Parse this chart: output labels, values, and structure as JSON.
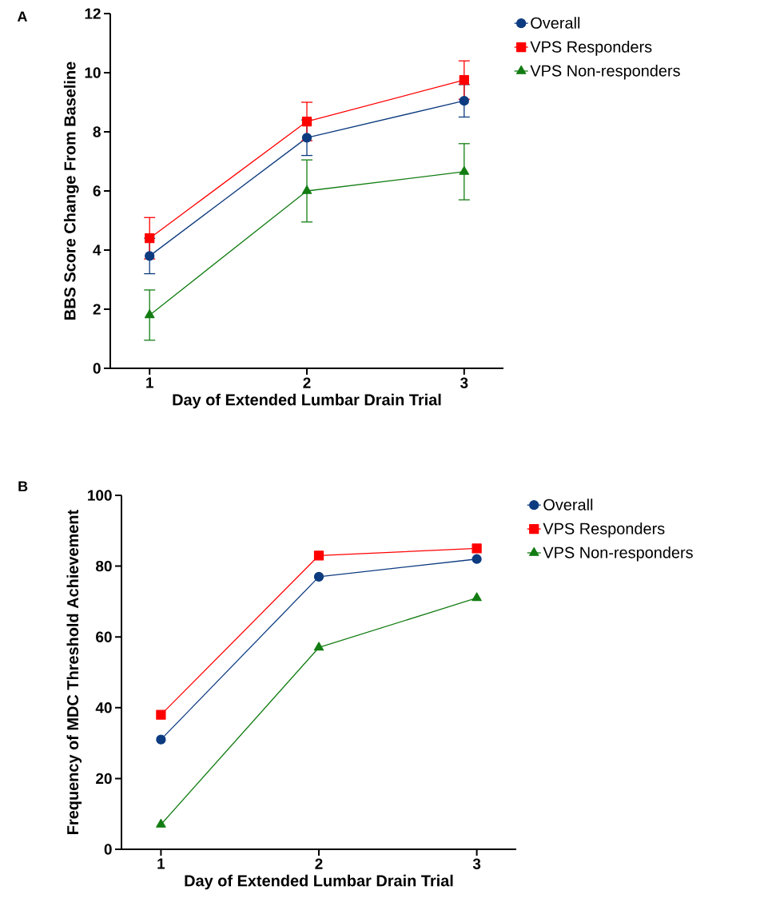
{
  "chart_data": [
    {
      "type": "line",
      "title": "A",
      "xlabel": "Day of Extended Lumbar Drain Trial",
      "ylabel": "BBS Score Change From Baseline",
      "x": [
        1,
        2,
        3
      ],
      "xlim": [
        0.75,
        3.25
      ],
      "xticks": [
        1,
        2,
        3
      ],
      "ylim": [
        0,
        12
      ],
      "yticks": [
        0,
        2,
        4,
        6,
        8,
        10,
        12
      ],
      "legend": "right",
      "series": [
        {
          "name": "Overall",
          "color": "#0d3b80",
          "marker": "circle",
          "values": [
            3.8,
            7.8,
            9.05
          ],
          "errors": [
            0.6,
            0.6,
            0.55
          ]
        },
        {
          "name": "VPS Responders",
          "color": "#ff0000",
          "marker": "square",
          "values": [
            4.4,
            8.35,
            9.75
          ],
          "errors": [
            0.7,
            0.65,
            0.65
          ]
        },
        {
          "name": "VPS Non-responders",
          "color": "#137d13",
          "marker": "triangle",
          "values": [
            1.8,
            6.0,
            6.65
          ],
          "errors": [
            0.85,
            1.05,
            0.95
          ]
        }
      ]
    },
    {
      "type": "line",
      "title": "B",
      "xlabel": "Day of Extended Lumbar Drain Trial",
      "ylabel": "Frequency of MDC Threshold Achievement",
      "x": [
        1,
        2,
        3
      ],
      "xlim": [
        0.75,
        3.25
      ],
      "xticks": [
        1,
        2,
        3
      ],
      "ylim": [
        0,
        100
      ],
      "yticks": [
        0,
        20,
        40,
        60,
        80,
        100
      ],
      "legend": "right",
      "series": [
        {
          "name": "Overall",
          "color": "#0d3b80",
          "marker": "circle",
          "values": [
            31,
            77,
            82
          ]
        },
        {
          "name": "VPS Responders",
          "color": "#ff0000",
          "marker": "square",
          "values": [
            38,
            83,
            85
          ]
        },
        {
          "name": "VPS Non-responders",
          "color": "#137d13",
          "marker": "triangle",
          "values": [
            7,
            57,
            71
          ]
        }
      ]
    }
  ]
}
